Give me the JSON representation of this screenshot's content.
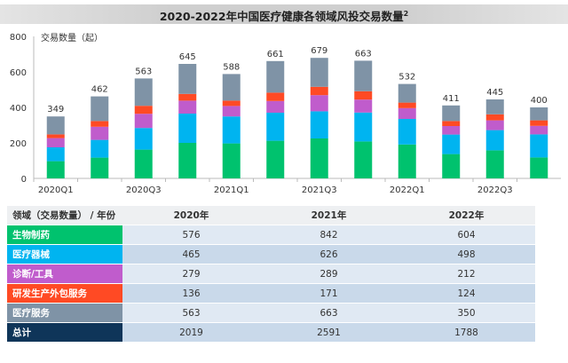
{
  "title": "2020-2022年中国医疗健康各领域风投交易数量",
  "title_sup": "2",
  "chart_data": {
    "type": "bar",
    "stacked": true,
    "title": "2020-2022年中国医疗健康各领域风投交易数量",
    "ylabel": "交易数量（起）",
    "ylim": [
      0,
      800
    ],
    "yticks": [
      0,
      200,
      400,
      600,
      800
    ],
    "categories": [
      "2020Q1",
      "2020Q2",
      "2020Q3",
      "2020Q4",
      "2021Q1",
      "2021Q2",
      "2021Q3",
      "2021Q4",
      "2022Q1",
      "2022Q2",
      "2022Q3",
      "2022Q4"
    ],
    "xtick_labels_shown": [
      "2020Q1",
      "",
      "2020Q3",
      "",
      "2021Q1",
      "",
      "2021Q3",
      "",
      "2022Q1",
      "",
      "2022Q3",
      ""
    ],
    "totals": [
      349,
      462,
      563,
      645,
      588,
      661,
      679,
      663,
      532,
      411,
      445,
      400
    ],
    "series": [
      {
        "name": "生物制药",
        "color": "#00c26e",
        "values": [
          97,
          117,
          162,
          200,
          197,
          212,
          225,
          208,
          191,
          137,
          158,
          118
        ]
      },
      {
        "name": "医疗器械",
        "color": "#00b4f0",
        "values": [
          78,
          100,
          122,
          165,
          152,
          158,
          153,
          163,
          144,
          110,
          114,
          130
        ]
      },
      {
        "name": "诊断/工具",
        "color": "#c05ccc",
        "values": [
          52,
          74,
          80,
          73,
          59,
          66,
          91,
          73,
          61,
          48,
          55,
          48
        ]
      },
      {
        "name": "研发生产外包服务",
        "color": "#ff4a24",
        "values": [
          21,
          32,
          45,
          38,
          30,
          47,
          47,
          47,
          31,
          28,
          34,
          31
        ]
      },
      {
        "name": "医疗服务",
        "color": "#7f93a6",
        "values": [
          101,
          139,
          154,
          169,
          150,
          178,
          163,
          172,
          105,
          88,
          84,
          73
        ]
      }
    ],
    "grid": false
  },
  "table": {
    "header": [
      "领域（交易数量） / 年份",
      "2020年",
      "2021年",
      "2022年"
    ],
    "rows": [
      {
        "label": "生物制药",
        "color": "#00c26e",
        "values": [
          "576",
          "842",
          "604"
        ]
      },
      {
        "label": "医疗器械",
        "color": "#00b4f0",
        "values": [
          "465",
          "626",
          "498"
        ]
      },
      {
        "label": "诊断/工具",
        "color": "#c05ccc",
        "values": [
          "279",
          "289",
          "212"
        ]
      },
      {
        "label": "研发生产外包服务",
        "color": "#ff4a24",
        "values": [
          "136",
          "171",
          "124"
        ]
      },
      {
        "label": "医疗服务",
        "color": "#7f93a6",
        "values": [
          "563",
          "663",
          "350"
        ]
      },
      {
        "label": "总计",
        "color": "#0f3559",
        "values": [
          "2019",
          "2591",
          "1788"
        ]
      }
    ]
  }
}
